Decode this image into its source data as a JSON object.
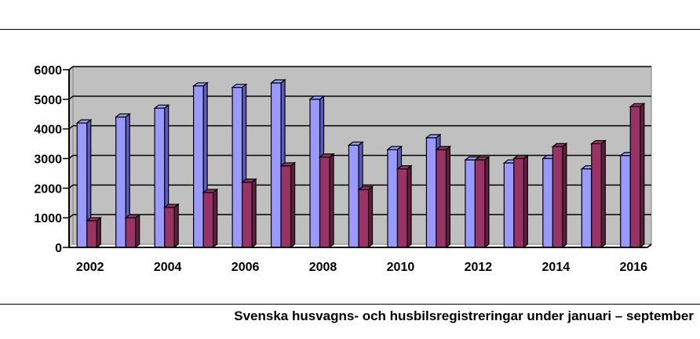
{
  "caption": "Svenska husvagns- och husbilsregistreringar under januari – september",
  "colors": {
    "plot_bg": "#c0c0c0",
    "series_a": "#9999ff",
    "series_a_side": "#5c5cc0",
    "series_b": "#993366",
    "series_b_side": "#5e1f3f",
    "grid": "#000000"
  },
  "chart_data": {
    "type": "bar",
    "categories": [
      "2002",
      "2003",
      "2004",
      "2005",
      "2006",
      "2007",
      "2008",
      "2009",
      "2010",
      "2011",
      "2012",
      "2013",
      "2014",
      "2015",
      "2016"
    ],
    "x_tick_labels": [
      "2002",
      "",
      "2004",
      "",
      "2006",
      "",
      "2008",
      "",
      "2010",
      "",
      "2012",
      "",
      "2014",
      "",
      "2016"
    ],
    "series": [
      {
        "values": [
          4200,
          4400,
          4700,
          5450,
          5400,
          5550,
          5000,
          3450,
          3300,
          3700,
          2950,
          2850,
          3000,
          2650,
          3100
        ]
      },
      {
        "values": [
          900,
          1000,
          1350,
          1850,
          2200,
          2750,
          3050,
          1950,
          2650,
          3300,
          2950,
          3000,
          3400,
          3500,
          4750
        ]
      }
    ],
    "y_ticks": [
      "0",
      "1000",
      "2000",
      "3000",
      "4000",
      "5000",
      "6000"
    ],
    "ylim": [
      0,
      6000
    ],
    "grid": true,
    "legend": "none",
    "three_d": true
  }
}
